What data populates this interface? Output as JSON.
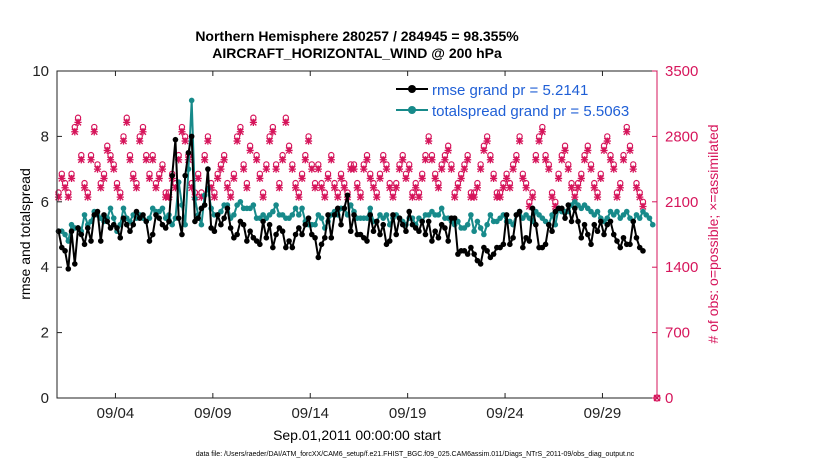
{
  "chart_data": {
    "type": "line",
    "title": "Northern Hemisphere 280257 / 284945 = 98.355%",
    "subtitle": "AIRCRAFT_HORIZONTAL_WIND @ 200 hPa",
    "xlabel": "Sep.01,2011 00:00:00 start",
    "ylabel": "rmse and totalspread",
    "y2label": "# of obs: o=possible; ×=assimilated",
    "xlim": [
      0,
      30.8
    ],
    "ylim": [
      0,
      10
    ],
    "y2lim": [
      0,
      3500
    ],
    "x_tick_values": [
      3,
      8,
      13,
      18,
      23,
      28
    ],
    "x_tick_labels": [
      "09/04",
      "09/09",
      "09/14",
      "09/19",
      "09/24",
      "09/29"
    ],
    "y_ticks": [
      0,
      2,
      4,
      6,
      8,
      10
    ],
    "y2_ticks": [
      0,
      700,
      1400,
      2100,
      2800,
      3500
    ],
    "grid": false,
    "legend_location": "top-right",
    "colors": {
      "rmse": "#000000",
      "spread": "#178a8a",
      "obs": "#d6155b",
      "title": "#000000",
      "legend_text": "#1f5fd6"
    },
    "series": [
      {
        "name": "rmse",
        "legend_label": "rmse grand pr = 5.2141",
        "axis": "left",
        "values": [
          5.1,
          4.6,
          4.5,
          3.95,
          5.1,
          4.1,
          5.2,
          5.0,
          4.7,
          5.2,
          4.8,
          5.6,
          5.7,
          4.8,
          5.6,
          5.4,
          5.2,
          5.3,
          5.2,
          4.9,
          5.5,
          5.3,
          5.1,
          5.3,
          5.7,
          5.5,
          5.6,
          5.4,
          4.8,
          5.0,
          5.6,
          5.5,
          5.3,
          5.2,
          5.4,
          6.8,
          7.9,
          5.5,
          5.0,
          6.8,
          7.5,
          8.0,
          5.4,
          5.5,
          5.8,
          5.9,
          7.0,
          5.2,
          5.1,
          5.6,
          5.3,
          5.5,
          5.8,
          5.2,
          4.9,
          5.0,
          5.4,
          5.3,
          4.8,
          5.1,
          4.9,
          4.8,
          4.7,
          5.4,
          4.9,
          5.3,
          4.6,
          5.0,
          5.2,
          5.1,
          4.6,
          4.8,
          4.6,
          5.0,
          5.2,
          5.0,
          5.3,
          5.5,
          5.0,
          4.9,
          4.3,
          4.7,
          4.9,
          5.6,
          4.9,
          5.6,
          5.8,
          5.3,
          5.8,
          6.2,
          5.1,
          5.6,
          5.0,
          5.0,
          4.9,
          4.8,
          5.6,
          5.1,
          5.4,
          5.0,
          5.3,
          4.7,
          4.8,
          5.6,
          5.0,
          5.5,
          5.3,
          5.1,
          5.7,
          5.3,
          5.2,
          5.1,
          5.4,
          5.0,
          5.4,
          4.8,
          5.1,
          4.9,
          5.3,
          5.2,
          4.8,
          5.5,
          5.5,
          4.4,
          4.5,
          4.5,
          4.4,
          4.6,
          4.4,
          4.2,
          4.1,
          4.6,
          4.5,
          4.3,
          4.4,
          4.6,
          4.6,
          4.7,
          5.6,
          4.7,
          4.9,
          5.6,
          5.7,
          4.6,
          4.9,
          4.8,
          5.8,
          5.3,
          4.6,
          4.6,
          4.7,
          5.3,
          5.1,
          5.7,
          5.8,
          5.8,
          5.5,
          5.9,
          5.4,
          5.8,
          5.4,
          4.9,
          5.3,
          5.0,
          4.7,
          5.3,
          5.1,
          5.4,
          5.0,
          5.3,
          5.4,
          5.0,
          4.8,
          4.6,
          4.9,
          4.7,
          4.7,
          5.4,
          4.9,
          4.6,
          4.5
        ]
      },
      {
        "name": "totalspread",
        "legend_label": "totalspread grand pr = 5.5063",
        "axis": "left",
        "values": [
          5.1,
          5.1,
          5.0,
          4.8,
          5.3,
          5.2,
          5.2,
          5.1,
          5.6,
          5.3,
          5.4,
          5.7,
          5.6,
          5.5,
          5.4,
          5.5,
          5.8,
          5.5,
          5.1,
          5.3,
          5.8,
          5.5,
          5.4,
          5.6,
          5.5,
          5.6,
          5.5,
          5.4,
          5.5,
          5.8,
          5.7,
          5.7,
          5.8,
          5.5,
          5.6,
          5.3,
          5.5,
          6.6,
          5.9,
          5.3,
          7.0,
          9.1,
          6.1,
          5.6,
          5.3,
          6.2,
          6.4,
          5.8,
          5.6,
          5.6,
          5.7,
          5.9,
          5.9,
          5.5,
          5.6,
          5.9,
          6.0,
          5.8,
          5.8,
          5.8,
          5.9,
          5.5,
          5.5,
          5.6,
          5.5,
          5.6,
          5.7,
          5.9,
          5.6,
          5.6,
          5.5,
          5.5,
          5.6,
          5.8,
          5.6,
          5.8,
          5.4,
          5.3,
          5.3,
          5.3,
          5.6,
          5.5,
          5.2,
          5.4,
          5.6,
          5.7,
          5.6,
          5.8,
          5.8,
          5.6,
          5.9,
          5.7,
          5.5,
          5.5,
          5.5,
          5.5,
          5.8,
          5.4,
          5.4,
          5.6,
          5.5,
          5.6,
          5.3,
          5.5,
          5.6,
          5.5,
          5.4,
          5.3,
          5.5,
          5.5,
          5.3,
          5.5,
          5.4,
          5.6,
          5.6,
          5.7,
          5.6,
          5.6,
          5.8,
          5.5,
          5.5,
          5.4,
          5.3,
          5.4,
          5.2,
          5.2,
          5.3,
          5.6,
          5.1,
          5.4,
          5.2,
          5.0,
          5.3,
          5.6,
          5.4,
          5.4,
          5.5,
          5.6,
          5.4,
          5.4,
          5.3,
          5.6,
          5.7,
          5.5,
          5.6,
          5.5,
          5.4,
          5.7,
          5.6,
          5.5,
          5.4,
          5.3,
          5.6,
          5.3,
          5.8,
          5.7,
          5.7,
          5.7,
          5.9,
          6.0,
          5.9,
          5.8,
          5.9,
          5.8,
          5.7,
          5.6,
          5.7,
          5.5,
          5.4,
          5.5,
          5.7,
          5.6,
          5.7,
          5.5,
          5.6,
          5.7,
          5.5,
          5.4,
          5.6,
          5.5,
          5.7,
          5.6,
          5.5,
          5.3
        ]
      }
    ],
    "obs_possible": [
      2200,
      2400,
      2300,
      2200,
      2400,
      2900,
      3000,
      2600,
      2300,
      2200,
      2600,
      2900,
      2500,
      2300,
      2400,
      2700,
      2600,
      2500,
      2300,
      2200,
      2800,
      3000,
      2600,
      2400,
      2300,
      2800,
      2900,
      2600,
      2400,
      2600,
      2300,
      2400,
      2500,
      2200,
      2200,
      2400,
      2300,
      2600,
      2900,
      2800,
      2600,
      2300,
      2200,
      2400,
      2200,
      2600,
      2800,
      2300,
      2200,
      2400,
      2500,
      2600,
      2300,
      2200,
      2400,
      2800,
      2900,
      2500,
      2300,
      2700,
      3000,
      2600,
      2400,
      2200,
      2500,
      2800,
      2900,
      2500,
      2300,
      2600,
      3000,
      2700,
      2500,
      2300,
      2200,
      2400,
      2600,
      2800,
      2500,
      2300,
      2500,
      2300,
      2200,
      2400,
      2600,
      2300,
      2200,
      2400,
      2300,
      2200,
      2500,
      2500,
      2300,
      2200,
      2500,
      2600,
      2400,
      2300,
      2200,
      2400,
      2600,
      2500,
      2300,
      2200,
      2300,
      2500,
      2600,
      2400,
      2500,
      2200,
      2300,
      2200,
      2400,
      2600,
      2800,
      2600,
      2400,
      2300,
      2500,
      2600,
      2700,
      2500,
      2200,
      2300,
      2400,
      2500,
      2600,
      2200,
      2200,
      2300,
      2500,
      2700,
      2800,
      2600,
      2400,
      2200,
      2200,
      2300,
      2400,
      2300,
      2500,
      2600,
      2800,
      2400,
      2300,
      2100,
      2200,
      2600,
      2800,
      2900,
      2600,
      2500,
      2200,
      2100,
      2400,
      2600,
      2700,
      2500,
      2300,
      2200,
      2300,
      2400,
      2600,
      2700,
      2500,
      2300,
      2200,
      2400,
      2700,
      2800,
      2600,
      2500,
      2200,
      2300,
      2600,
      2900,
      2700,
      2500,
      2300,
      2200,
      2100
    ],
    "obs_assimilated": [
      2150,
      2350,
      2250,
      2150,
      2350,
      2850,
      2950,
      2550,
      2250,
      2150,
      2550,
      2850,
      2450,
      2250,
      2350,
      2650,
      2550,
      2450,
      2250,
      2150,
      2750,
      2950,
      2550,
      2350,
      2250,
      2750,
      2850,
      2550,
      2350,
      2550,
      2250,
      2350,
      2450,
      2150,
      2150,
      2350,
      2250,
      2550,
      2850,
      2750,
      2550,
      2250,
      2150,
      2350,
      2150,
      2550,
      2750,
      2250,
      2150,
      2350,
      2450,
      2550,
      2250,
      2150,
      2350,
      2750,
      2850,
      2450,
      2250,
      2650,
      2950,
      2550,
      2350,
      2150,
      2450,
      2750,
      2850,
      2450,
      2250,
      2550,
      2950,
      2650,
      2450,
      2250,
      2150,
      2350,
      2550,
      2750,
      2450,
      2250,
      2450,
      2250,
      2150,
      2350,
      2550,
      2250,
      2150,
      2350,
      2250,
      2150,
      2450,
      2450,
      2250,
      2150,
      2450,
      2550,
      2350,
      2250,
      2150,
      2350,
      2550,
      2450,
      2250,
      2150,
      2250,
      2450,
      2550,
      2350,
      2450,
      2150,
      2250,
      2150,
      2350,
      2550,
      2750,
      2550,
      2350,
      2250,
      2450,
      2550,
      2650,
      2450,
      2150,
      2250,
      2350,
      2450,
      2550,
      2150,
      2150,
      2250,
      2450,
      2650,
      2750,
      2550,
      2350,
      2150,
      2150,
      2250,
      2350,
      2250,
      2450,
      2550,
      2750,
      2350,
      2250,
      2050,
      2150,
      2550,
      2750,
      2850,
      2550,
      2450,
      2150,
      2050,
      2350,
      2550,
      2650,
      2450,
      2250,
      2150,
      2250,
      2350,
      2550,
      2650,
      2450,
      2250,
      2150,
      2350,
      2650,
      2750,
      2550,
      2450,
      2150,
      2250,
      2550,
      2850,
      2650,
      2450,
      2250,
      2150,
      2050
    ]
  },
  "footer": {
    "data_file": "data file: /Users/raeder/DAI/ATM_forcXX/CAM6_setup/f.e21.FHIST_BGC.f09_025.CAM6assim.011/Diags_NTrS_2011-09/obs_diag_output.nc"
  }
}
